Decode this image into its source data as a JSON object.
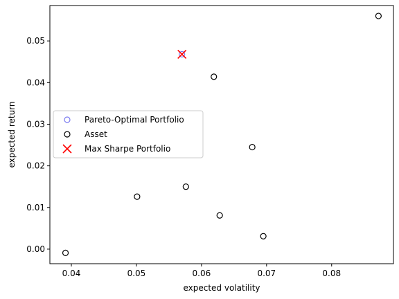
{
  "chart_data": {
    "type": "scatter",
    "title": "",
    "xlabel": "expected volatility",
    "ylabel": "expected return",
    "xlim": [
      0.0367,
      0.0895
    ],
    "ylim": [
      -0.0035,
      0.0585
    ],
    "x_ticks": [
      0.04,
      0.05,
      0.06,
      0.07,
      0.08
    ],
    "x_tick_labels": [
      "0.04",
      "0.05",
      "0.06",
      "0.07",
      "0.08"
    ],
    "y_ticks": [
      0.0,
      0.01,
      0.02,
      0.03,
      0.04,
      0.05
    ],
    "y_tick_labels": [
      "0.00",
      "0.01",
      "0.02",
      "0.03",
      "0.04",
      "0.05"
    ],
    "grid": false,
    "legend_position": "center-left",
    "series": [
      {
        "name": "Pareto-Optimal Portfolio",
        "marker": "open-circle",
        "color": "#7b7bf0",
        "x": [
          0.057
        ],
        "y": [
          0.0468
        ]
      },
      {
        "name": "Asset",
        "marker": "open-circle",
        "color": "#000000",
        "x": [
          0.0391,
          0.0501,
          0.0576,
          0.0619,
          0.0628,
          0.0678,
          0.0695,
          0.0872
        ],
        "y": [
          -0.0009,
          0.0126,
          0.015,
          0.0414,
          0.0081,
          0.0245,
          0.0031,
          0.056
        ]
      },
      {
        "name": "Max Sharpe Portfolio",
        "marker": "x",
        "color": "#ff0000",
        "x": [
          0.057
        ],
        "y": [
          0.0468
        ]
      }
    ]
  }
}
